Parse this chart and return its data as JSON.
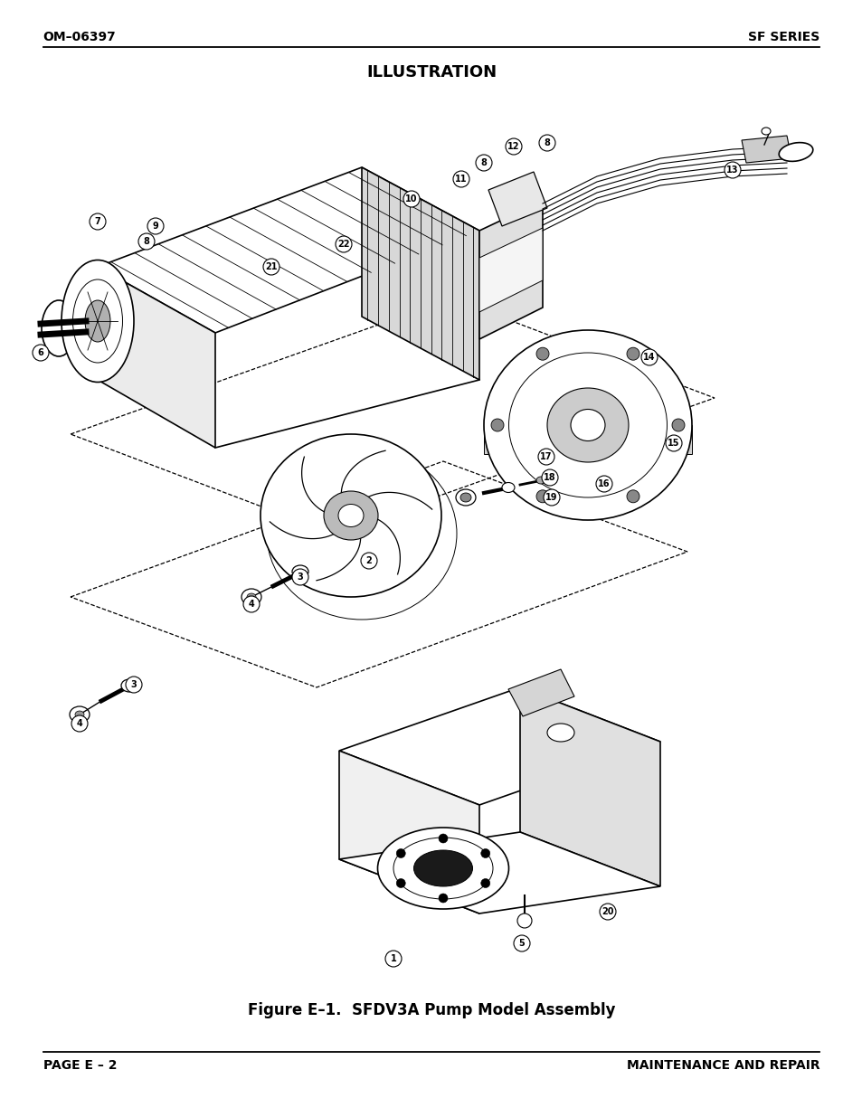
{
  "bg_color": "#ffffff",
  "header_left": "OM–06397",
  "header_right": "SF SERIES",
  "title": "ILLUSTRATION",
  "caption": "Figure E–1.  SFDV3A Pump Model Assembly",
  "footer_left": "PAGE E – 2",
  "footer_right": "MAINTENANCE AND REPAIR",
  "page_width": 9.54,
  "page_height": 12.35,
  "dpi": 100,
  "header_fontsize": 10,
  "title_fontsize": 13,
  "caption_fontsize": 12,
  "footer_fontsize": 10
}
